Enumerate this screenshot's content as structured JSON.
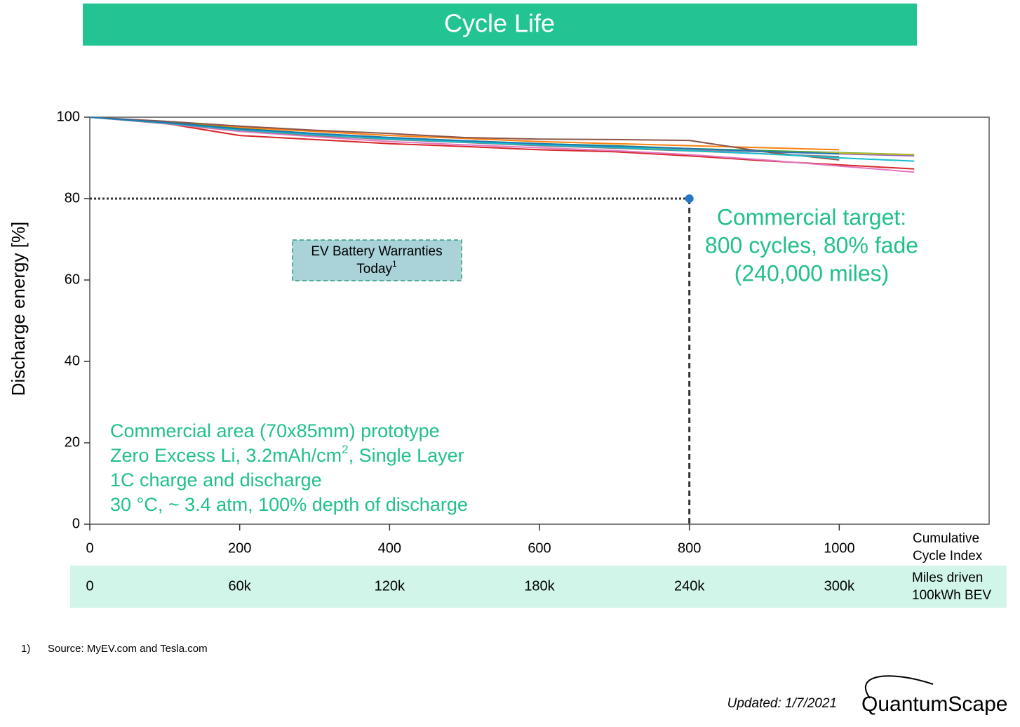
{
  "title": "Cycle Life",
  "chart_data": {
    "type": "line",
    "ylabel": "Discharge energy [%]",
    "xlabel": [
      "Cumulative",
      "Cycle Index"
    ],
    "x": [
      0,
      100,
      200,
      300,
      400,
      500,
      600,
      700,
      800,
      900,
      1000,
      1100
    ],
    "xlim": [
      0,
      1200
    ],
    "ylim": [
      0,
      100
    ],
    "xticks": [
      0,
      200,
      400,
      600,
      800,
      1000
    ],
    "yticks": [
      0,
      20,
      40,
      60,
      80,
      100
    ],
    "series": [
      {
        "color": "#d62728",
        "values": [
          100,
          98.5,
          95.5,
          94.5,
          93.5,
          92.8,
          92,
          91.5,
          90.5,
          89.3,
          88.3,
          87.3
        ]
      },
      {
        "color": "#ff7f0e",
        "values": [
          100,
          98.8,
          97.5,
          96.5,
          95.5,
          94.8,
          94,
          93.5,
          93,
          92.5,
          92,
          null
        ]
      },
      {
        "color": "#2ca02c",
        "values": [
          100,
          98.8,
          97.2,
          96,
          95,
          94.2,
          93.5,
          93,
          92.3,
          91.8,
          91.3,
          90.8
        ]
      },
      {
        "color": "#9467bd",
        "values": [
          100,
          98.6,
          97,
          95.8,
          94.8,
          94,
          93.3,
          92.7,
          92,
          91.5,
          91,
          90.5
        ]
      },
      {
        "color": "#8c564b",
        "values": [
          100,
          99,
          97.8,
          96.8,
          96,
          95,
          94.6,
          94.5,
          94.3,
          91.5,
          89.5,
          null
        ]
      },
      {
        "color": "#e377c2",
        "values": [
          100,
          98.4,
          96.5,
          95.2,
          94,
          93.2,
          92.5,
          91.8,
          90.8,
          89.5,
          88,
          86.5
        ]
      },
      {
        "color": "#7f7f7f",
        "values": [
          100,
          98.5,
          96.8,
          95.5,
          94.5,
          93.8,
          93,
          92.4,
          91.7,
          91,
          90.3,
          null
        ]
      },
      {
        "color": "#bcbd22",
        "values": [
          100,
          98.6,
          97,
          95.8,
          94.9,
          94,
          93.4,
          92.8,
          92.2,
          91.6,
          91.2,
          90.8
        ]
      },
      {
        "color": "#17becf",
        "values": [
          100,
          98.6,
          96.9,
          95.7,
          94.7,
          93.9,
          93.2,
          92.6,
          91.8,
          91,
          90,
          89.2
        ]
      },
      {
        "color": "#1f77b4",
        "values": [
          100,
          98.7,
          97.1,
          96,
          95,
          94.2,
          93.5,
          92.9,
          92.3,
          91.6,
          91,
          null
        ]
      }
    ],
    "target": {
      "x": 800,
      "y": 80,
      "color": "#2477c9"
    },
    "target_annotation": [
      "Commercial target:",
      "800 cycles, 80% fade",
      "(240,000 miles)"
    ],
    "miles_ticks": [
      0,
      {
        "value": 200,
        "label": "60k"
      },
      {
        "value": 400,
        "label": "120k"
      },
      {
        "value": 600,
        "label": "180k"
      },
      {
        "value": 800,
        "label": "240k"
      },
      {
        "value": 1000,
        "label": "300k"
      }
    ],
    "miles_label": [
      "Miles driven",
      "100kWh BEV"
    ],
    "warranty_box": {
      "text": [
        "EV Battery Warranties",
        "Today"
      ],
      "footnote_mark": "1"
    },
    "notes": [
      "Commercial area (70x85mm) prototype",
      [
        "Zero Excess Li, 3.2mAh/cm",
        "2",
        ", Single Layer"
      ],
      "1C charge and discharge",
      "30 °C, ~ 3.4 atm, 100% depth of discharge"
    ]
  },
  "footnote": {
    "mark": "1)",
    "text": "Source: MyEV.com and Tesla.com"
  },
  "updated": "Updated: 1/7/2021",
  "logo": "QuantumScape"
}
